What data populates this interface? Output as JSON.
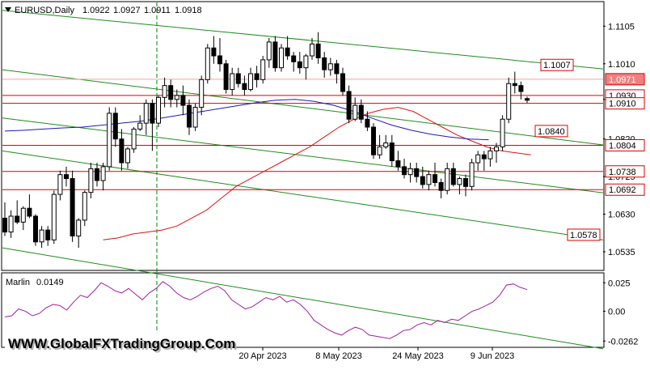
{
  "chart_data": [
    {
      "type": "candlestick",
      "title": "EURUSD,Daily",
      "ohlc": [
        "1.0922",
        "1.0927",
        "1.0911",
        "1.0918"
      ],
      "ylim": [
        1.049,
        1.1165
      ],
      "y_ticks": [
        "1.1105",
        "1.1010",
        "1.0920",
        "1.0820",
        "1.0725",
        "1.0630",
        "1.0535"
      ],
      "x_ticks": [
        "20 Apr 2023",
        "8 May 2023",
        "24 May 2023",
        "9 Jun 2023"
      ],
      "price_levels": [
        {
          "label": "1.0971",
          "value": 1.0971,
          "style": "filled",
          "color": "#f08080"
        },
        {
          "label": "1.0930",
          "value": 1.093,
          "style": "outlined",
          "color": "#e00000"
        },
        {
          "label": "1.0910",
          "value": 1.091,
          "style": "outlined",
          "color": "#e00000"
        },
        {
          "label": "1.0804",
          "value": 1.0804,
          "style": "outlined",
          "color": "#e00000"
        },
        {
          "label": "1.0738",
          "value": 1.0738,
          "style": "outlined",
          "color": "#e00000"
        },
        {
          "label": "1.0692",
          "value": 1.0692,
          "style": "outlined",
          "color": "#e00000"
        }
      ],
      "channel_labels": [
        {
          "label": "1.1007",
          "value": 1.1007
        },
        {
          "label": "1.0840",
          "value": 1.084
        },
        {
          "label": "1.0578",
          "value": 1.0578
        }
      ],
      "candles": [
        [
          1.062,
          1.066,
          1.0575,
          1.0585
        ],
        [
          1.0585,
          1.064,
          1.057,
          1.0625
        ],
        [
          1.0625,
          1.0665,
          1.0605,
          1.061
        ],
        [
          1.061,
          1.065,
          1.059,
          1.0645
        ],
        [
          1.0645,
          1.068,
          1.062,
          1.0625
        ],
        [
          1.0625,
          1.063,
          1.055,
          1.056
        ],
        [
          1.056,
          1.06,
          1.0545,
          1.059
        ],
        [
          1.059,
          1.06,
          1.055,
          1.0565
        ],
        [
          1.0565,
          1.069,
          1.0555,
          1.068
        ],
        [
          1.068,
          1.074,
          1.0665,
          1.073
        ],
        [
          1.073,
          1.075,
          1.07,
          1.072
        ],
        [
          1.072,
          1.074,
          1.056,
          1.0575
        ],
        [
          1.0575,
          1.062,
          1.0545,
          1.0615
        ],
        [
          1.0615,
          1.069,
          1.06,
          1.0685
        ],
        [
          1.0685,
          1.076,
          1.067,
          1.0745
        ],
        [
          1.0745,
          1.076,
          1.07,
          1.0715
        ],
        [
          1.0715,
          1.076,
          1.069,
          1.075
        ],
        [
          1.075,
          1.09,
          1.074,
          1.0885
        ],
        [
          1.0885,
          1.09,
          1.08,
          1.082
        ],
        [
          1.082,
          1.0845,
          1.074,
          1.076
        ],
        [
          1.076,
          1.08,
          1.0745,
          1.0795
        ],
        [
          1.0795,
          1.085,
          1.0785,
          1.0845
        ],
        [
          1.0845,
          1.088,
          1.084,
          1.086
        ],
        [
          1.086,
          1.092,
          1.083,
          1.091
        ],
        [
          1.091,
          1.092,
          1.079,
          1.086
        ],
        [
          1.086,
          1.093,
          1.085,
          1.0925
        ],
        [
          1.0925,
          1.0975,
          1.09,
          1.0955
        ],
        [
          1.0955,
          1.097,
          1.09,
          1.092
        ],
        [
          1.092,
          1.0945,
          1.09,
          1.093
        ],
        [
          1.093,
          1.0955,
          1.088,
          1.0905
        ],
        [
          1.0905,
          1.092,
          1.083,
          1.085
        ],
        [
          1.085,
          1.091,
          1.084,
          1.09
        ],
        [
          1.09,
          1.098,
          1.088,
          1.097
        ],
        [
          1.097,
          1.106,
          1.096,
          1.105
        ],
        [
          1.105,
          1.108,
          1.101,
          1.103
        ],
        [
          1.103,
          1.1075,
          1.099,
          1.101
        ],
        [
          1.101,
          1.102,
          1.0935,
          1.0945
        ],
        [
          1.0945,
          1.1,
          1.093,
          1.0985
        ],
        [
          1.0985,
          1.1,
          1.095,
          1.096
        ],
        [
          1.096,
          1.098,
          1.093,
          1.0945
        ],
        [
          1.0945,
          1.1,
          1.094,
          1.0985
        ],
        [
          1.0985,
          1.1005,
          1.095,
          1.097
        ],
        [
          1.097,
          1.103,
          1.096,
          1.102
        ],
        [
          1.102,
          1.1075,
          1.1,
          1.1065
        ],
        [
          1.1065,
          1.108,
          1.099,
          1.1
        ],
        [
          1.1,
          1.106,
          1.099,
          1.105
        ],
        [
          1.105,
          1.108,
          1.102,
          1.103
        ],
        [
          1.103,
          1.104,
          1.099,
          1.1015
        ],
        [
          1.1015,
          1.104,
          1.0985,
          1.1
        ],
        [
          1.1,
          1.1035,
          1.097,
          1.103
        ],
        [
          1.103,
          1.1075,
          1.102,
          1.106
        ],
        [
          1.106,
          1.109,
          1.101,
          1.1025
        ],
        [
          1.1025,
          1.104,
          1.0975,
          1.0995
        ],
        [
          1.0995,
          1.1025,
          1.098,
          1.101
        ],
        [
          1.101,
          1.102,
          1.096,
          1.0985
        ],
        [
          1.0985,
          1.1,
          1.093,
          1.094
        ],
        [
          1.094,
          1.0955,
          1.086,
          1.087
        ],
        [
          1.087,
          1.0925,
          1.0865,
          1.0905
        ],
        [
          1.0905,
          1.092,
          1.086,
          1.087
        ],
        [
          1.087,
          1.089,
          1.084,
          1.085
        ],
        [
          1.085,
          1.086,
          1.077,
          1.078
        ],
        [
          1.078,
          1.083,
          1.077,
          1.08
        ],
        [
          1.08,
          1.083,
          1.0795,
          1.081
        ],
        [
          1.081,
          1.083,
          1.075,
          1.0765
        ],
        [
          1.0765,
          1.079,
          1.074,
          1.075
        ],
        [
          1.075,
          1.077,
          1.072,
          1.073
        ],
        [
          1.073,
          1.076,
          1.071,
          1.0745
        ],
        [
          1.0745,
          1.076,
          1.071,
          1.0725
        ],
        [
          1.0725,
          1.075,
          1.0695,
          1.0705
        ],
        [
          1.0705,
          1.074,
          1.069,
          1.073
        ],
        [
          1.073,
          1.076,
          1.07,
          1.071
        ],
        [
          1.071,
          1.072,
          1.067,
          1.069
        ],
        [
          1.069,
          1.076,
          1.068,
          1.0745
        ],
        [
          1.0745,
          1.076,
          1.07,
          1.0705
        ],
        [
          1.0705,
          1.0725,
          1.068,
          1.072
        ],
        [
          1.072,
          1.073,
          1.0675,
          1.07
        ],
        [
          1.07,
          1.077,
          1.069,
          1.076
        ],
        [
          1.076,
          1.079,
          1.074,
          1.078
        ],
        [
          1.078,
          1.079,
          1.074,
          1.077
        ],
        [
          1.077,
          1.08,
          1.075,
          1.079
        ],
        [
          1.079,
          1.081,
          1.076,
          1.08
        ],
        [
          1.08,
          1.088,
          1.079,
          1.087
        ],
        [
          1.087,
          1.0975,
          1.086,
          1.096
        ],
        [
          1.096,
          1.099,
          1.0935,
          1.0955
        ],
        [
          1.0955,
          1.0965,
          1.092,
          1.094
        ],
        [
          1.0922,
          1.0927,
          1.0911,
          1.0918
        ]
      ],
      "ma_red": [
        1.0565,
        1.057,
        1.058,
        1.0585,
        1.059,
        1.06,
        1.062,
        1.064,
        1.067,
        1.07,
        1.072,
        1.074,
        1.076,
        1.078,
        1.08,
        1.0825,
        1.085,
        1.087,
        1.0885,
        1.0895,
        1.09,
        1.089,
        1.087,
        1.085,
        1.083,
        1.0815,
        1.08,
        1.079,
        1.0785,
        1.078
      ],
      "ma_blue": [
        1.084,
        1.0842,
        1.0845,
        1.0848,
        1.085,
        1.0855,
        1.086,
        1.0865,
        1.0872,
        1.088,
        1.0888,
        1.0896,
        1.0904,
        1.0912,
        1.0918,
        1.092,
        1.0915,
        1.0905,
        1.089,
        1.0872,
        1.0855,
        1.0842,
        1.0832,
        1.0825,
        1.082,
        1.0818
      ],
      "oscillator": {
        "name": "Marlin",
        "value": "0.0149",
        "y_ticks": [
          "0.025",
          "0.00",
          "-0.0262"
        ],
        "ylim": [
          -0.031,
          0.033
        ],
        "values": [
          -0.005,
          -0.004,
          0.002,
          0.0,
          -0.004,
          -0.002,
          0.003,
          0.006,
          0.005,
          0.001,
          0.008,
          0.014,
          0.012,
          0.018,
          0.025,
          0.022,
          0.018,
          0.016,
          0.02,
          0.015,
          0.01,
          0.016,
          0.02,
          0.026,
          0.022,
          0.016,
          0.012,
          0.01,
          0.013,
          0.017,
          0.02,
          0.022,
          0.018,
          0.01,
          0.006,
          0.002,
          0.004,
          0.008,
          0.012,
          0.01,
          0.013,
          0.008,
          0.01,
          0.006,
          0.0,
          -0.008,
          -0.012,
          -0.016,
          -0.019,
          -0.021,
          -0.017,
          -0.014,
          -0.016,
          -0.021,
          -0.022,
          -0.023,
          -0.024,
          -0.021,
          -0.017,
          -0.016,
          -0.012,
          -0.01,
          -0.012,
          -0.008,
          -0.01,
          -0.007,
          -0.008,
          -0.004,
          0.0,
          0.002,
          0.005,
          0.008,
          0.014,
          0.023,
          0.024,
          0.021,
          0.019
        ]
      }
    }
  ],
  "watermark": "WWW.GlobalFXTradingGroup.Com",
  "colors": {
    "bull": "#ffffff",
    "bear": "#000000",
    "channel": "#1e8c1e",
    "level": "#e00000",
    "ma_red": "#e01010",
    "ma_blue": "#1c1cb4",
    "oscillator": "#a020a0",
    "vline": "#008000"
  }
}
